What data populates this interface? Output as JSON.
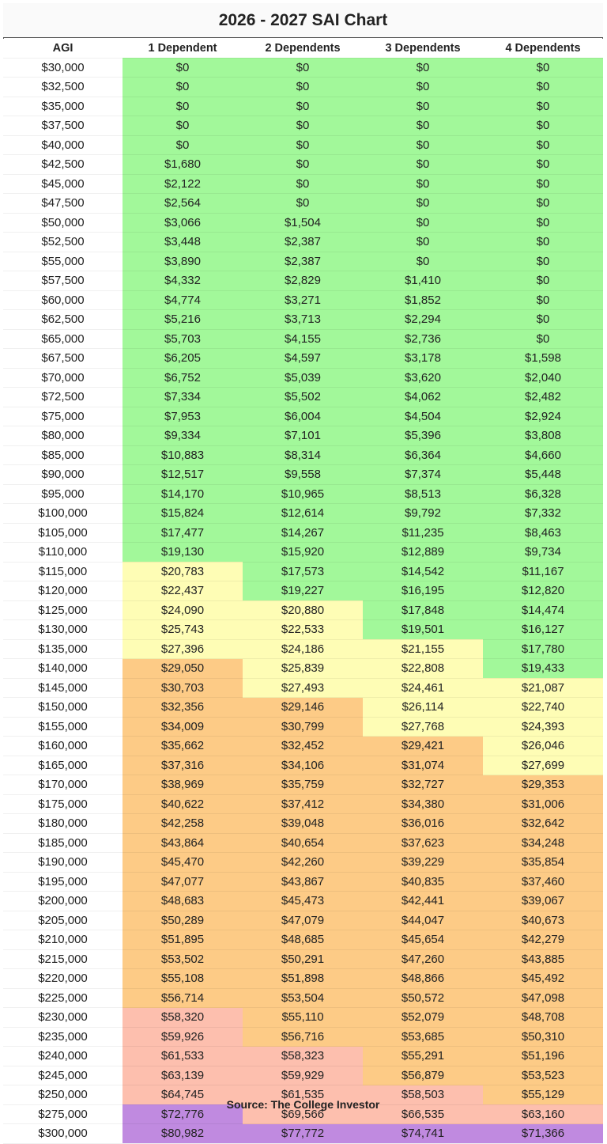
{
  "title": "2026 - 2027 SAI Chart",
  "source": "Source: The College Investor",
  "colors": {
    "green": "#a2f89a",
    "yellow": "#fefdb5",
    "orange": "#fdcb86",
    "salmon": "#fdbfae",
    "purple": "#c08ae0"
  },
  "chart_data": {
    "type": "table",
    "title": "2026 - 2027 SAI Chart",
    "columns": [
      "AGI",
      "1 Dependent",
      "2 Dependents",
      "3 Dependents",
      "4 Dependents"
    ],
    "rows": [
      {
        "agi": "$30,000",
        "values": [
          "$0",
          "$0",
          "$0",
          "$0"
        ],
        "colors": [
          "green",
          "green",
          "green",
          "green"
        ]
      },
      {
        "agi": "$32,500",
        "values": [
          "$0",
          "$0",
          "$0",
          "$0"
        ],
        "colors": [
          "green",
          "green",
          "green",
          "green"
        ]
      },
      {
        "agi": "$35,000",
        "values": [
          "$0",
          "$0",
          "$0",
          "$0"
        ],
        "colors": [
          "green",
          "green",
          "green",
          "green"
        ]
      },
      {
        "agi": "$37,500",
        "values": [
          "$0",
          "$0",
          "$0",
          "$0"
        ],
        "colors": [
          "green",
          "green",
          "green",
          "green"
        ]
      },
      {
        "agi": "$40,000",
        "values": [
          "$0",
          "$0",
          "$0",
          "$0"
        ],
        "colors": [
          "green",
          "green",
          "green",
          "green"
        ]
      },
      {
        "agi": "$42,500",
        "values": [
          "$1,680",
          "$0",
          "$0",
          "$0"
        ],
        "colors": [
          "green",
          "green",
          "green",
          "green"
        ]
      },
      {
        "agi": "$45,000",
        "values": [
          "$2,122",
          "$0",
          "$0",
          "$0"
        ],
        "colors": [
          "green",
          "green",
          "green",
          "green"
        ]
      },
      {
        "agi": "$47,500",
        "values": [
          "$2,564",
          "$0",
          "$0",
          "$0"
        ],
        "colors": [
          "green",
          "green",
          "green",
          "green"
        ]
      },
      {
        "agi": "$50,000",
        "values": [
          "$3,066",
          "$1,504",
          "$0",
          "$0"
        ],
        "colors": [
          "green",
          "green",
          "green",
          "green"
        ]
      },
      {
        "agi": "$52,500",
        "values": [
          "$3,448",
          "$2,387",
          "$0",
          "$0"
        ],
        "colors": [
          "green",
          "green",
          "green",
          "green"
        ]
      },
      {
        "agi": "$55,000",
        "values": [
          "$3,890",
          "$2,387",
          "$0",
          "$0"
        ],
        "colors": [
          "green",
          "green",
          "green",
          "green"
        ]
      },
      {
        "agi": "$57,500",
        "values": [
          "$4,332",
          "$2,829",
          "$1,410",
          "$0"
        ],
        "colors": [
          "green",
          "green",
          "green",
          "green"
        ]
      },
      {
        "agi": "$60,000",
        "values": [
          "$4,774",
          "$3,271",
          "$1,852",
          "$0"
        ],
        "colors": [
          "green",
          "green",
          "green",
          "green"
        ]
      },
      {
        "agi": "$62,500",
        "values": [
          "$5,216",
          "$3,713",
          "$2,294",
          "$0"
        ],
        "colors": [
          "green",
          "green",
          "green",
          "green"
        ]
      },
      {
        "agi": "$65,000",
        "values": [
          "$5,703",
          "$4,155",
          "$2,736",
          "$0"
        ],
        "colors": [
          "green",
          "green",
          "green",
          "green"
        ]
      },
      {
        "agi": "$67,500",
        "values": [
          "$6,205",
          "$4,597",
          "$3,178",
          "$1,598"
        ],
        "colors": [
          "green",
          "green",
          "green",
          "green"
        ]
      },
      {
        "agi": "$70,000",
        "values": [
          "$6,752",
          "$5,039",
          "$3,620",
          "$2,040"
        ],
        "colors": [
          "green",
          "green",
          "green",
          "green"
        ]
      },
      {
        "agi": "$72,500",
        "values": [
          "$7,334",
          "$5,502",
          "$4,062",
          "$2,482"
        ],
        "colors": [
          "green",
          "green",
          "green",
          "green"
        ]
      },
      {
        "agi": "$75,000",
        "values": [
          "$7,953",
          "$6,004",
          "$4,504",
          "$2,924"
        ],
        "colors": [
          "green",
          "green",
          "green",
          "green"
        ]
      },
      {
        "agi": "$80,000",
        "values": [
          "$9,334",
          "$7,101",
          "$5,396",
          "$3,808"
        ],
        "colors": [
          "green",
          "green",
          "green",
          "green"
        ]
      },
      {
        "agi": "$85,000",
        "values": [
          "$10,883",
          "$8,314",
          "$6,364",
          "$4,660"
        ],
        "colors": [
          "green",
          "green",
          "green",
          "green"
        ]
      },
      {
        "agi": "$90,000",
        "values": [
          "$12,517",
          "$9,558",
          "$7,374",
          "$5,448"
        ],
        "colors": [
          "green",
          "green",
          "green",
          "green"
        ]
      },
      {
        "agi": "$95,000",
        "values": [
          "$14,170",
          "$10,965",
          "$8,513",
          "$6,328"
        ],
        "colors": [
          "green",
          "green",
          "green",
          "green"
        ]
      },
      {
        "agi": "$100,000",
        "values": [
          "$15,824",
          "$12,614",
          "$9,792",
          "$7,332"
        ],
        "colors": [
          "green",
          "green",
          "green",
          "green"
        ]
      },
      {
        "agi": "$105,000",
        "values": [
          "$17,477",
          "$14,267",
          "$11,235",
          "$8,463"
        ],
        "colors": [
          "green",
          "green",
          "green",
          "green"
        ]
      },
      {
        "agi": "$110,000",
        "values": [
          "$19,130",
          "$15,920",
          "$12,889",
          "$9,734"
        ],
        "colors": [
          "green",
          "green",
          "green",
          "green"
        ]
      },
      {
        "agi": "$115,000",
        "values": [
          "$20,783",
          "$17,573",
          "$14,542",
          "$11,167"
        ],
        "colors": [
          "yellow",
          "green",
          "green",
          "green"
        ]
      },
      {
        "agi": "$120,000",
        "values": [
          "$22,437",
          "$19,227",
          "$16,195",
          "$12,820"
        ],
        "colors": [
          "yellow",
          "green",
          "green",
          "green"
        ]
      },
      {
        "agi": "$125,000",
        "values": [
          "$24,090",
          "$20,880",
          "$17,848",
          "$14,474"
        ],
        "colors": [
          "yellow",
          "yellow",
          "green",
          "green"
        ]
      },
      {
        "agi": "$130,000",
        "values": [
          "$25,743",
          "$22,533",
          "$19,501",
          "$16,127"
        ],
        "colors": [
          "yellow",
          "yellow",
          "green",
          "green"
        ]
      },
      {
        "agi": "$135,000",
        "values": [
          "$27,396",
          "$24,186",
          "$21,155",
          "$17,780"
        ],
        "colors": [
          "yellow",
          "yellow",
          "yellow",
          "green"
        ]
      },
      {
        "agi": "$140,000",
        "values": [
          "$29,050",
          "$25,839",
          "$22,808",
          "$19,433"
        ],
        "colors": [
          "orange",
          "yellow",
          "yellow",
          "green"
        ]
      },
      {
        "agi": "$145,000",
        "values": [
          "$30,703",
          "$27,493",
          "$24,461",
          "$21,087"
        ],
        "colors": [
          "orange",
          "yellow",
          "yellow",
          "yellow"
        ]
      },
      {
        "agi": "$150,000",
        "values": [
          "$32,356",
          "$29,146",
          "$26,114",
          "$22,740"
        ],
        "colors": [
          "orange",
          "orange",
          "yellow",
          "yellow"
        ]
      },
      {
        "agi": "$155,000",
        "values": [
          "$34,009",
          "$30,799",
          "$27,768",
          "$24,393"
        ],
        "colors": [
          "orange",
          "orange",
          "yellow",
          "yellow"
        ]
      },
      {
        "agi": "$160,000",
        "values": [
          "$35,662",
          "$32,452",
          "$29,421",
          "$26,046"
        ],
        "colors": [
          "orange",
          "orange",
          "orange",
          "yellow"
        ]
      },
      {
        "agi": "$165,000",
        "values": [
          "$37,316",
          "$34,106",
          "$31,074",
          "$27,699"
        ],
        "colors": [
          "orange",
          "orange",
          "orange",
          "yellow"
        ]
      },
      {
        "agi": "$170,000",
        "values": [
          "$38,969",
          "$35,759",
          "$32,727",
          "$29,353"
        ],
        "colors": [
          "orange",
          "orange",
          "orange",
          "orange"
        ]
      },
      {
        "agi": "$175,000",
        "values": [
          "$40,622",
          "$37,412",
          "$34,380",
          "$31,006"
        ],
        "colors": [
          "orange",
          "orange",
          "orange",
          "orange"
        ]
      },
      {
        "agi": "$180,000",
        "values": [
          "$42,258",
          "$39,048",
          "$36,016",
          "$32,642"
        ],
        "colors": [
          "orange",
          "orange",
          "orange",
          "orange"
        ]
      },
      {
        "agi": "$185,000",
        "values": [
          "$43,864",
          "$40,654",
          "$37,623",
          "$34,248"
        ],
        "colors": [
          "orange",
          "orange",
          "orange",
          "orange"
        ]
      },
      {
        "agi": "$190,000",
        "values": [
          "$45,470",
          "$42,260",
          "$39,229",
          "$35,854"
        ],
        "colors": [
          "orange",
          "orange",
          "orange",
          "orange"
        ]
      },
      {
        "agi": "$195,000",
        "values": [
          "$47,077",
          "$43,867",
          "$40,835",
          "$37,460"
        ],
        "colors": [
          "orange",
          "orange",
          "orange",
          "orange"
        ]
      },
      {
        "agi": "$200,000",
        "values": [
          "$48,683",
          "$45,473",
          "$42,441",
          "$39,067"
        ],
        "colors": [
          "orange",
          "orange",
          "orange",
          "orange"
        ]
      },
      {
        "agi": "$205,000",
        "values": [
          "$50,289",
          "$47,079",
          "$44,047",
          "$40,673"
        ],
        "colors": [
          "orange",
          "orange",
          "orange",
          "orange"
        ]
      },
      {
        "agi": "$210,000",
        "values": [
          "$51,895",
          "$48,685",
          "$45,654",
          "$42,279"
        ],
        "colors": [
          "orange",
          "orange",
          "orange",
          "orange"
        ]
      },
      {
        "agi": "$215,000",
        "values": [
          "$53,502",
          "$50,291",
          "$47,260",
          "$43,885"
        ],
        "colors": [
          "orange",
          "orange",
          "orange",
          "orange"
        ]
      },
      {
        "agi": "$220,000",
        "values": [
          "$55,108",
          "$51,898",
          "$48,866",
          "$45,492"
        ],
        "colors": [
          "orange",
          "orange",
          "orange",
          "orange"
        ]
      },
      {
        "agi": "$225,000",
        "values": [
          "$56,714",
          "$53,504",
          "$50,572",
          "$47,098"
        ],
        "colors": [
          "orange",
          "orange",
          "orange",
          "orange"
        ]
      },
      {
        "agi": "$230,000",
        "values": [
          "$58,320",
          "$55,110",
          "$52,079",
          "$48,708"
        ],
        "colors": [
          "salmon",
          "orange",
          "orange",
          "orange"
        ]
      },
      {
        "agi": "$235,000",
        "values": [
          "$59,926",
          "$56,716",
          "$53,685",
          "$50,310"
        ],
        "colors": [
          "salmon",
          "orange",
          "orange",
          "orange"
        ]
      },
      {
        "agi": "$240,000",
        "values": [
          "$61,533",
          "$58,323",
          "$55,291",
          "$51,196"
        ],
        "colors": [
          "salmon",
          "salmon",
          "orange",
          "orange"
        ]
      },
      {
        "agi": "$245,000",
        "values": [
          "$63,139",
          "$59,929",
          "$56,879",
          "$53,523"
        ],
        "colors": [
          "salmon",
          "salmon",
          "orange",
          "orange"
        ]
      },
      {
        "agi": "$250,000",
        "values": [
          "$64,745",
          "$61,535",
          "$58,503",
          "$55,129"
        ],
        "colors": [
          "salmon",
          "salmon",
          "salmon",
          "orange"
        ]
      },
      {
        "agi": "$275,000",
        "values": [
          "$72,776",
          "$69,566",
          "$66,535",
          "$63,160"
        ],
        "colors": [
          "purple",
          "salmon",
          "salmon",
          "salmon"
        ]
      },
      {
        "agi": "$300,000",
        "values": [
          "$80,982",
          "$77,772",
          "$74,741",
          "$71,366"
        ],
        "colors": [
          "purple",
          "purple",
          "purple",
          "purple"
        ]
      }
    ]
  }
}
